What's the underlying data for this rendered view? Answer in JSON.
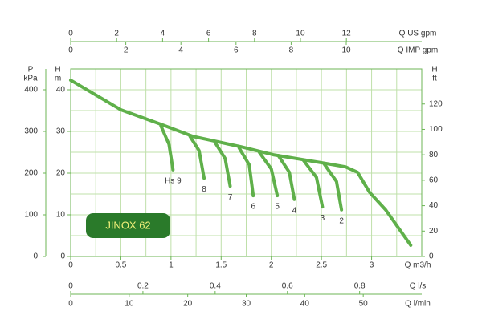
{
  "chart_data": {
    "type": "line",
    "annotation": "JINOX 62",
    "color": "#5fb04a",
    "grid_color": "#bfe0aa",
    "xlabel": "Q m3/h",
    "xlim": [
      0,
      3.5
    ],
    "xticks": [
      0,
      0.5,
      1,
      1.5,
      2,
      2.5,
      3
    ],
    "xgrid": [
      0.25,
      0.5,
      0.75,
      1,
      1.25,
      1.5,
      1.75,
      2,
      2.25,
      2.5,
      2.75,
      3,
      3.25
    ],
    "ylabel": [
      "H",
      "m"
    ],
    "ylim": [
      0,
      45
    ],
    "yticks": [
      0,
      10,
      20,
      30,
      40
    ],
    "ygrid": [
      5,
      10,
      15,
      20,
      25,
      30,
      35,
      40
    ],
    "y2label": [
      "H",
      "ft"
    ],
    "y2lim": [
      0,
      147.6
    ],
    "y2ticks": [
      0,
      20,
      40,
      60,
      80,
      100,
      120
    ],
    "y3label": [
      "P",
      "kPa"
    ],
    "y3lim": [
      0,
      450
    ],
    "y3ticks": [
      0,
      100,
      200,
      300,
      400
    ],
    "top_axes": [
      {
        "label": "Q US gpm",
        "lim": [
          0,
          15.28
        ],
        "ticks": [
          0,
          2,
          4,
          6,
          8,
          10,
          12
        ]
      },
      {
        "label": "Q IMP gpm",
        "lim": [
          0,
          12.74
        ],
        "ticks": [
          0,
          2,
          4,
          6,
          8,
          10
        ]
      }
    ],
    "bottom_axes": [
      {
        "label": "Q l/s",
        "lim": [
          0,
          0.972
        ],
        "ticks": [
          0,
          0.2,
          0.4,
          0.6,
          0.8
        ]
      },
      {
        "label": "Q l/min",
        "lim": [
          0,
          60
        ],
        "ticks": [
          0,
          10,
          20,
          30,
          40,
          50
        ]
      }
    ],
    "series": [
      {
        "x": [
          0,
          0.5,
          0.9,
          1.22,
          1.7,
          2.02,
          2.5,
          2.74,
          2.86,
          2.98,
          3.14,
          3.39
        ],
        "y": [
          42.3,
          35.2,
          31.7,
          28.8,
          26.3,
          24.4,
          22.5,
          21.5,
          20.2,
          15.4,
          11.2,
          2.7
        ]
      },
      {
        "name": "Hs 9",
        "x": [
          0.9,
          0.98,
          1.02
        ],
        "y": [
          31.3,
          26.9,
          20.8
        ]
      },
      {
        "name": "8",
        "x": [
          1.19,
          1.28,
          1.33
        ],
        "y": [
          28.8,
          25.4,
          18.8
        ]
      },
      {
        "name": "7",
        "x": [
          1.44,
          1.54,
          1.59
        ],
        "y": [
          27.3,
          23.5,
          16.9
        ]
      },
      {
        "name": "6",
        "x": [
          1.68,
          1.78,
          1.82
        ],
        "y": [
          26.0,
          22.0,
          14.6
        ]
      },
      {
        "name": "5",
        "x": [
          1.88,
          2.0,
          2.06
        ],
        "y": [
          25.0,
          21.0,
          14.6
        ]
      },
      {
        "name": "4",
        "x": [
          2.07,
          2.18,
          2.23
        ],
        "y": [
          24.2,
          20.2,
          13.7
        ]
      },
      {
        "name": "3",
        "x": [
          2.32,
          2.45,
          2.51
        ],
        "y": [
          23.1,
          19.0,
          11.9
        ]
      },
      {
        "name": "2",
        "x": [
          2.53,
          2.65,
          2.7
        ],
        "y": [
          22.1,
          18.0,
          11.2
        ]
      }
    ]
  }
}
